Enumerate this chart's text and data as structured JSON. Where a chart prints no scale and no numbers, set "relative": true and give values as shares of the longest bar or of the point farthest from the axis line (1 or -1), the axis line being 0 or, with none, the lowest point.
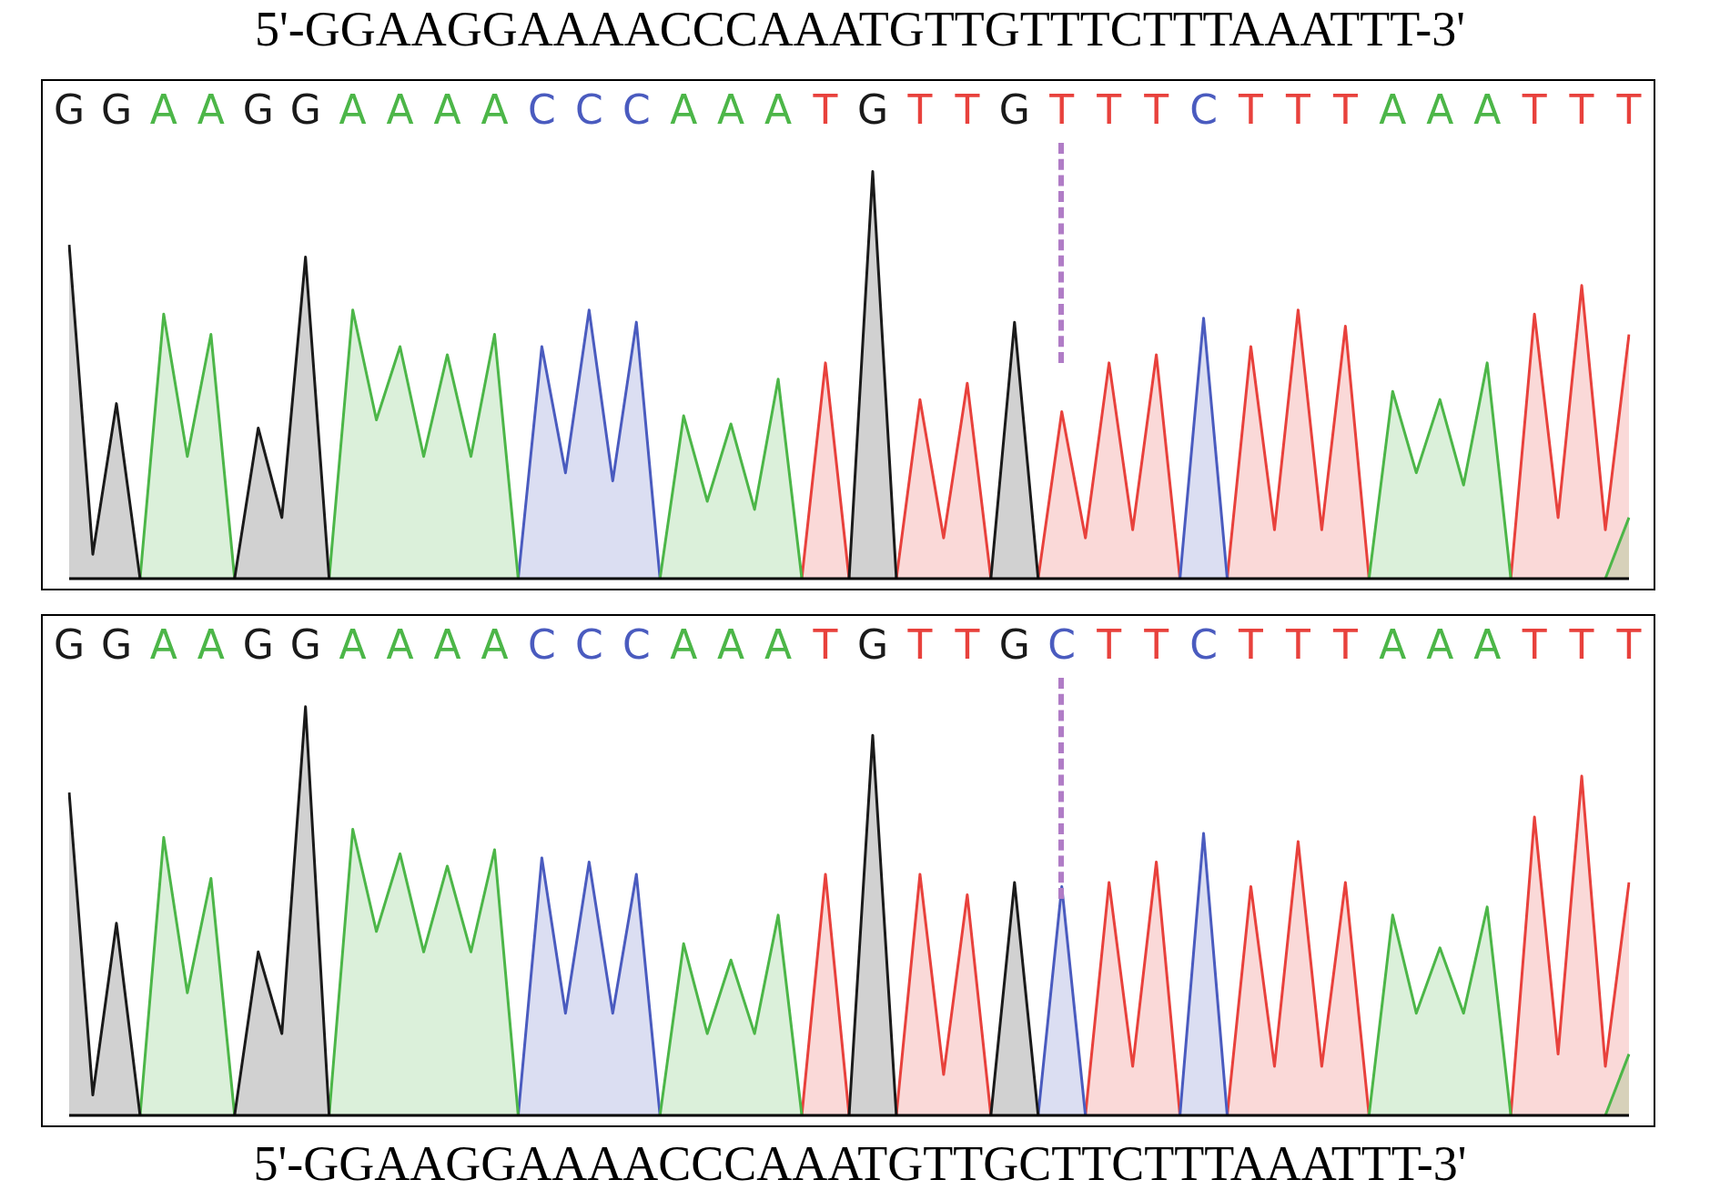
{
  "chart_data": [
    {
      "type": "area",
      "title": "5'-GGAAGGAAAACCCAAATGTTGTTTCTTTAAATTT-3'",
      "relative": true,
      "tick_labels": "x",
      "grid": false,
      "categories": [
        "G",
        null,
        "G",
        null,
        "A",
        null,
        "A",
        null,
        "G",
        null,
        "G",
        null,
        "A",
        null,
        "A",
        null,
        "A",
        null,
        "A",
        null,
        "C",
        null,
        "C",
        null,
        "C",
        null,
        "A",
        null,
        "A",
        null,
        "A",
        null,
        "T",
        null,
        "G",
        null,
        "T",
        null,
        "T",
        null,
        "G",
        null,
        "T",
        null,
        "T",
        null,
        "T",
        null,
        "C",
        null,
        "T",
        null,
        "T",
        null,
        "T",
        null,
        "A",
        null,
        "A",
        null,
        "A",
        null,
        "T",
        null,
        "T",
        null,
        "T"
      ],
      "series": [
        {
          "color": "#1a1a1a",
          "values": [
            0.82,
            0.06,
            0.43,
            0,
            null,
            null,
            null,
            0,
            0.37,
            0.15,
            0.79,
            0,
            null,
            null,
            null,
            null,
            null,
            null,
            null,
            null,
            null,
            null,
            null,
            null,
            null,
            null,
            null,
            null,
            null,
            null,
            null,
            null,
            null,
            0,
            1,
            0,
            null,
            null,
            null,
            0,
            0.63,
            0,
            null,
            null,
            null,
            null,
            null,
            null,
            null,
            null,
            null,
            null,
            null,
            null,
            null,
            null,
            null,
            null,
            null,
            null,
            null,
            null,
            null,
            null,
            null,
            null,
            null
          ]
        },
        {
          "color": "#4cb648",
          "values": [
            null,
            null,
            null,
            0,
            0.65,
            0.3,
            0.6,
            0,
            null,
            null,
            null,
            0,
            0.66,
            0.39,
            0.57,
            0.3,
            0.55,
            0.3,
            0.6,
            0,
            null,
            null,
            null,
            null,
            null,
            0,
            0.4,
            0.19,
            0.38,
            0.17,
            0.49,
            0,
            null,
            null,
            null,
            null,
            null,
            null,
            null,
            null,
            null,
            null,
            null,
            null,
            null,
            null,
            null,
            null,
            null,
            null,
            null,
            null,
            null,
            null,
            null,
            0,
            0.46,
            0.26,
            0.44,
            0.23,
            0.53,
            0,
            null,
            null,
            null,
            0,
            0.15
          ]
        },
        {
          "color": "#4a5bbf",
          "values": [
            null,
            null,
            null,
            null,
            null,
            null,
            null,
            null,
            null,
            null,
            null,
            null,
            null,
            null,
            null,
            null,
            null,
            null,
            null,
            0,
            0.57,
            0.26,
            0.66,
            0.24,
            0.63,
            0,
            null,
            null,
            null,
            null,
            null,
            null,
            null,
            null,
            null,
            null,
            null,
            null,
            null,
            null,
            null,
            null,
            null,
            null,
            null,
            null,
            null,
            0,
            0.64,
            0,
            null,
            null,
            null,
            null,
            null,
            null,
            null,
            null,
            null,
            null,
            null,
            null,
            null,
            null,
            null,
            null,
            null
          ]
        },
        {
          "color": "#e8413c",
          "values": [
            null,
            null,
            null,
            null,
            null,
            null,
            null,
            null,
            null,
            null,
            null,
            null,
            null,
            null,
            null,
            null,
            null,
            null,
            null,
            null,
            null,
            null,
            null,
            null,
            null,
            null,
            null,
            null,
            null,
            null,
            null,
            0,
            0.53,
            0,
            null,
            0,
            0.44,
            0.1,
            0.48,
            0,
            null,
            0,
            0.41,
            0.1,
            0.53,
            0.12,
            0.55,
            0,
            null,
            0,
            0.57,
            0.12,
            0.66,
            0.12,
            0.62,
            0,
            null,
            null,
            null,
            null,
            null,
            0,
            0.65,
            0.15,
            0.72,
            0.12,
            0.6
          ]
        }
      ]
    },
    {
      "type": "area",
      "xlabel": "5'-GGAAGGAAAACCCAAATGTTGCTTCTTTAAATTT-3'",
      "relative": true,
      "tick_labels": "x",
      "grid": false,
      "categories": [
        "G",
        null,
        "G",
        null,
        "A",
        null,
        "A",
        null,
        "G",
        null,
        "G",
        null,
        "A",
        null,
        "A",
        null,
        "A",
        null,
        "A",
        null,
        "C",
        null,
        "C",
        null,
        "C",
        null,
        "A",
        null,
        "A",
        null,
        "A",
        null,
        "T",
        null,
        "G",
        null,
        "T",
        null,
        "T",
        null,
        "G",
        null,
        "C",
        null,
        "T",
        null,
        "T",
        null,
        "C",
        null,
        "T",
        null,
        "T",
        null,
        "T",
        null,
        "A",
        null,
        "A",
        null,
        "A",
        null,
        "T",
        null,
        "T",
        null,
        "T"
      ],
      "series": [
        {
          "color": "#1a1a1a",
          "values": [
            0.79,
            0.05,
            0.47,
            0,
            null,
            null,
            null,
            0,
            0.4,
            0.2,
            1,
            0,
            null,
            null,
            null,
            null,
            null,
            null,
            null,
            null,
            null,
            null,
            null,
            null,
            null,
            null,
            null,
            null,
            null,
            null,
            null,
            null,
            null,
            0,
            0.93,
            0,
            null,
            null,
            null,
            0,
            0.57,
            0,
            null,
            null,
            null,
            null,
            null,
            null,
            null,
            null,
            null,
            null,
            null,
            null,
            null,
            null,
            null,
            null,
            null,
            null,
            null,
            null,
            null,
            null,
            null,
            null,
            null
          ]
        },
        {
          "color": "#4cb648",
          "values": [
            null,
            null,
            null,
            0,
            0.68,
            0.3,
            0.58,
            0,
            null,
            null,
            null,
            0,
            0.7,
            0.45,
            0.64,
            0.4,
            0.61,
            0.4,
            0.65,
            0,
            null,
            null,
            null,
            null,
            null,
            0,
            0.42,
            0.2,
            0.38,
            0.2,
            0.49,
            0,
            null,
            null,
            null,
            null,
            null,
            null,
            null,
            null,
            null,
            null,
            null,
            null,
            null,
            null,
            null,
            null,
            null,
            null,
            null,
            null,
            null,
            null,
            null,
            0,
            0.49,
            0.25,
            0.41,
            0.25,
            0.51,
            0,
            null,
            null,
            null,
            0,
            0.15
          ]
        },
        {
          "color": "#4a5bbf",
          "values": [
            null,
            null,
            null,
            null,
            null,
            null,
            null,
            null,
            null,
            null,
            null,
            null,
            null,
            null,
            null,
            null,
            null,
            null,
            null,
            0,
            0.63,
            0.25,
            0.62,
            0.25,
            0.59,
            0,
            null,
            null,
            null,
            null,
            null,
            null,
            null,
            null,
            null,
            null,
            null,
            null,
            null,
            null,
            null,
            0,
            0.56,
            0,
            null,
            null,
            null,
            0,
            0.69,
            0,
            null,
            null,
            null,
            null,
            null,
            null,
            null,
            null,
            null,
            null,
            null,
            null,
            null,
            null,
            null,
            null,
            null
          ]
        },
        {
          "color": "#e8413c",
          "values": [
            null,
            null,
            null,
            null,
            null,
            null,
            null,
            null,
            null,
            null,
            null,
            null,
            null,
            null,
            null,
            null,
            null,
            null,
            null,
            null,
            null,
            null,
            null,
            null,
            null,
            null,
            null,
            null,
            null,
            null,
            null,
            0,
            0.59,
            0,
            null,
            0,
            0.59,
            0.1,
            0.54,
            0,
            null,
            null,
            null,
            0,
            0.57,
            0.12,
            0.62,
            0,
            null,
            0,
            0.56,
            0.12,
            0.67,
            0.12,
            0.57,
            0,
            null,
            null,
            null,
            null,
            null,
            0,
            0.73,
            0.15,
            0.83,
            0.12,
            0.57
          ]
        }
      ]
    }
  ]
}
